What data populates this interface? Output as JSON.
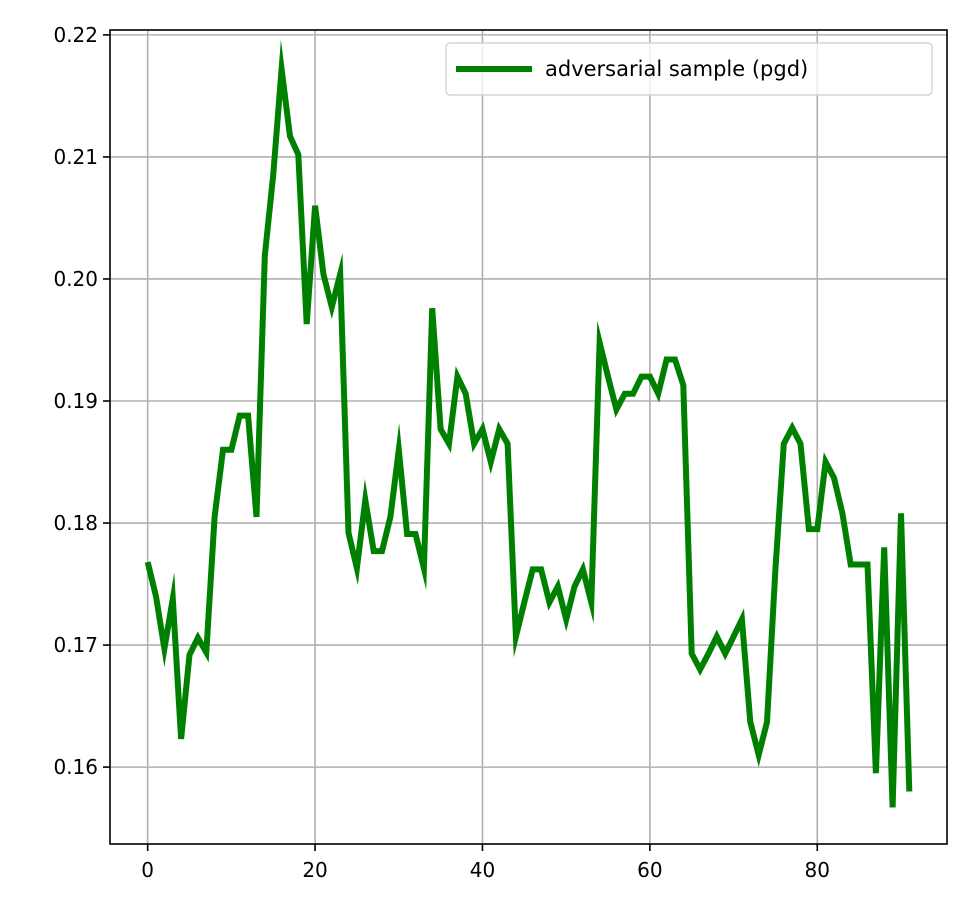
{
  "chart_data": {
    "type": "line",
    "title": "",
    "xlabel": "",
    "ylabel": "",
    "xlim": [
      -4.5,
      95.5
    ],
    "ylim": [
      0.1537,
      0.2204
    ],
    "grid": true,
    "legend_position": "top-right",
    "xticks": [
      0,
      20,
      40,
      60,
      80
    ],
    "yticks": [
      0.16,
      0.17,
      0.18,
      0.19,
      0.2,
      0.21,
      0.22
    ],
    "xtick_labels": [
      "0",
      "20",
      "40",
      "60",
      "80"
    ],
    "ytick_labels": [
      "0.16",
      "0.17",
      "0.18",
      "0.19",
      "0.20",
      "0.21",
      "0.22"
    ],
    "series": [
      {
        "name": "adversarial sample (pgd)",
        "color": "#008000",
        "x": [
          0,
          1,
          2,
          3,
          4,
          5,
          6,
          7,
          8,
          9,
          10,
          11,
          12,
          13,
          14,
          15,
          16,
          17,
          18,
          19,
          20,
          21,
          22,
          23,
          24,
          25,
          26,
          27,
          28,
          29,
          30,
          31,
          32,
          33,
          34,
          35,
          36,
          37,
          38,
          39,
          40,
          41,
          42,
          43,
          44,
          45,
          46,
          47,
          48,
          49,
          50,
          51,
          52,
          53,
          54,
          55,
          56,
          57,
          58,
          59,
          60,
          61,
          62,
          63,
          64,
          65,
          66,
          67,
          68,
          69,
          70,
          71,
          72,
          73,
          74,
          75,
          76,
          77,
          78,
          79,
          80,
          81,
          82,
          83,
          84,
          85,
          86,
          87,
          88,
          89,
          90,
          91
        ],
        "values": [
          0.1768,
          0.174,
          0.1697,
          0.1738,
          0.1623,
          0.1692,
          0.1706,
          0.1694,
          0.1805,
          0.186,
          0.186,
          0.1888,
          0.1888,
          0.1805,
          0.2019,
          0.2085,
          0.2172,
          0.2117,
          0.2102,
          0.1963,
          0.206,
          0.2004,
          0.1977,
          0.2004,
          0.1792,
          0.1763,
          0.1819,
          0.1777,
          0.1777,
          0.1805,
          0.186,
          0.1791,
          0.1791,
          0.1763,
          0.1976,
          0.1877,
          0.1865,
          0.192,
          0.1906,
          0.1865,
          0.1877,
          0.185,
          0.1877,
          0.1865,
          0.1707,
          0.1735,
          0.1762,
          0.1762,
          0.1735,
          0.1748,
          0.1721,
          0.1748,
          0.1762,
          0.1735,
          0.1948,
          0.192,
          0.1893,
          0.1906,
          0.1906,
          0.192,
          0.192,
          0.1906,
          0.1934,
          0.1934,
          0.1913,
          0.1693,
          0.168,
          0.1693,
          0.1707,
          0.1693,
          0.1707,
          0.1721,
          0.1637,
          0.161,
          0.1637,
          0.1762,
          0.1865,
          0.1878,
          0.1865,
          0.1795,
          0.1795,
          0.185,
          0.1837,
          0.1808,
          0.1766,
          0.1766,
          0.1766,
          0.1595,
          0.178,
          0.1567,
          0.1808,
          0.158
        ]
      }
    ]
  }
}
